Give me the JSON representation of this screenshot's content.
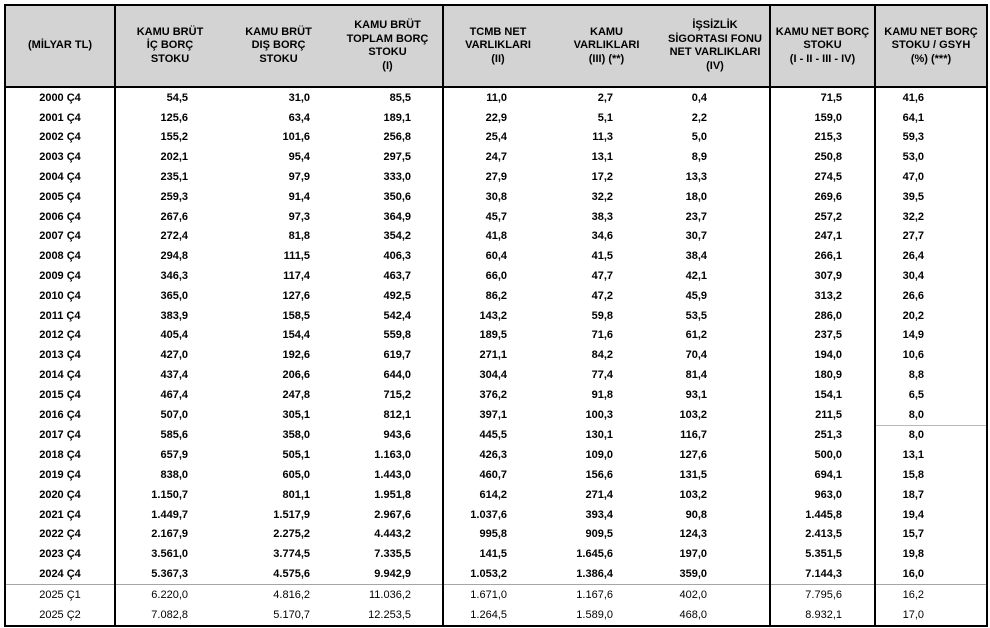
{
  "chart_data": {
    "type": "table",
    "unit_note": "(MİLYAR TL)",
    "columns": [
      "(MİLYAR TL)",
      "KAMU BRÜT\nİÇ BORÇ\nSTOKU",
      "KAMU BRÜT\nDIŞ BORÇ\nSTOKU",
      "KAMU BRÜT\nTOPLAM BORÇ\nSTOKU\n(I)",
      "TCMB NET\nVARLIKLARI\n(II)",
      "KAMU\nVARLIKLARI\n(III) (**)",
      "İŞSİZLİK\nSİGORTASI FONU\nNET VARLIKLARI\n(IV)",
      "KAMU NET BORÇ\nSTOKU\n(I - II - III - IV)",
      "KAMU NET BORÇ\nSTOKU / GSYH\n(%) (***)"
    ],
    "header_bg_color": "#d3d3d3",
    "rows": [
      {
        "period": "2000 Ç4",
        "bold": true,
        "values": [
          "54,5",
          "31,0",
          "85,5",
          "11,0",
          "2,7",
          "0,4",
          "71,5",
          "41,6"
        ]
      },
      {
        "period": "2001 Ç4",
        "bold": true,
        "values": [
          "125,6",
          "63,4",
          "189,1",
          "22,9",
          "5,1",
          "2,2",
          "159,0",
          "64,1"
        ]
      },
      {
        "period": "2002 Ç4",
        "bold": true,
        "values": [
          "155,2",
          "101,6",
          "256,8",
          "25,4",
          "11,3",
          "5,0",
          "215,3",
          "59,3"
        ]
      },
      {
        "period": "2003 Ç4",
        "bold": true,
        "values": [
          "202,1",
          "95,4",
          "297,5",
          "24,7",
          "13,1",
          "8,9",
          "250,8",
          "53,0"
        ]
      },
      {
        "period": "2004 Ç4",
        "bold": true,
        "values": [
          "235,1",
          "97,9",
          "333,0",
          "27,9",
          "17,2",
          "13,3",
          "274,5",
          "47,0"
        ]
      },
      {
        "period": "2005 Ç4",
        "bold": true,
        "values": [
          "259,3",
          "91,4",
          "350,6",
          "30,8",
          "32,2",
          "18,0",
          "269,6",
          "39,5"
        ]
      },
      {
        "period": "2006 Ç4",
        "bold": true,
        "values": [
          "267,6",
          "97,3",
          "364,9",
          "45,7",
          "38,3",
          "23,7",
          "257,2",
          "32,2"
        ]
      },
      {
        "period": "2007 Ç4",
        "bold": true,
        "values": [
          "272,4",
          "81,8",
          "354,2",
          "41,8",
          "34,6",
          "30,7",
          "247,1",
          "27,7"
        ]
      },
      {
        "period": "2008 Ç4",
        "bold": true,
        "values": [
          "294,8",
          "111,5",
          "406,3",
          "60,4",
          "41,5",
          "38,4",
          "266,1",
          "26,4"
        ]
      },
      {
        "period": "2009 Ç4",
        "bold": true,
        "values": [
          "346,3",
          "117,4",
          "463,7",
          "66,0",
          "47,7",
          "42,1",
          "307,9",
          "30,4"
        ]
      },
      {
        "period": "2010 Ç4",
        "bold": true,
        "values": [
          "365,0",
          "127,6",
          "492,5",
          "86,2",
          "47,2",
          "45,9",
          "313,2",
          "26,6"
        ]
      },
      {
        "period": "2011 Ç4",
        "bold": true,
        "values": [
          "383,9",
          "158,5",
          "542,4",
          "143,2",
          "59,8",
          "53,5",
          "286,0",
          "20,2"
        ]
      },
      {
        "period": "2012 Ç4",
        "bold": true,
        "values": [
          "405,4",
          "154,4",
          "559,8",
          "189,5",
          "71,6",
          "61,2",
          "237,5",
          "14,9"
        ]
      },
      {
        "period": "2013 Ç4",
        "bold": true,
        "values": [
          "427,0",
          "192,6",
          "619,7",
          "271,1",
          "84,2",
          "70,4",
          "194,0",
          "10,6"
        ]
      },
      {
        "period": "2014 Ç4",
        "bold": true,
        "values": [
          "437,4",
          "206,6",
          "644,0",
          "304,4",
          "77,4",
          "81,4",
          "180,9",
          "8,8"
        ]
      },
      {
        "period": "2015 Ç4",
        "bold": true,
        "values": [
          "467,4",
          "247,8",
          "715,2",
          "376,2",
          "91,8",
          "93,1",
          "154,1",
          "6,5"
        ]
      },
      {
        "period": "2016 Ç4",
        "bold": true,
        "pct_divider_below": true,
        "values": [
          "507,0",
          "305,1",
          "812,1",
          "397,1",
          "100,3",
          "103,2",
          "211,5",
          "8,0"
        ]
      },
      {
        "period": "2017 Ç4",
        "bold": true,
        "values": [
          "585,6",
          "358,0",
          "943,6",
          "445,5",
          "130,1",
          "116,7",
          "251,3",
          "8,0"
        ]
      },
      {
        "period": "2018 Ç4",
        "bold": true,
        "values": [
          "657,9",
          "505,1",
          "1.163,0",
          "426,3",
          "109,0",
          "127,6",
          "500,0",
          "13,1"
        ]
      },
      {
        "period": "2019 Ç4",
        "bold": true,
        "values": [
          "838,0",
          "605,0",
          "1.443,0",
          "460,7",
          "156,6",
          "131,5",
          "694,1",
          "15,8"
        ]
      },
      {
        "period": "2020 Ç4",
        "bold": true,
        "values": [
          "1.150,7",
          "801,1",
          "1.951,8",
          "614,2",
          "271,4",
          "103,2",
          "963,0",
          "18,7"
        ]
      },
      {
        "period": "2021 Ç4",
        "bold": true,
        "values": [
          "1.449,7",
          "1.517,9",
          "2.967,6",
          "1.037,6",
          "393,4",
          "90,8",
          "1.445,8",
          "19,4"
        ]
      },
      {
        "period": "2022 Ç4",
        "bold": true,
        "values": [
          "2.167,9",
          "2.275,2",
          "4.443,2",
          "995,8",
          "909,5",
          "124,3",
          "2.413,5",
          "15,7"
        ]
      },
      {
        "period": "2023 Ç4",
        "bold": true,
        "values": [
          "3.561,0",
          "3.774,5",
          "7.335,5",
          "141,5",
          "1.645,6",
          "197,0",
          "5.351,5",
          "19,8"
        ]
      },
      {
        "period": "2024 Ç4",
        "bold": true,
        "values": [
          "5.367,3",
          "4.575,6",
          "9.942,9",
          "1.053,2",
          "1.386,4",
          "359,0",
          "7.144,3",
          "16,0"
        ]
      },
      {
        "period": "2025 Ç1",
        "bold": false,
        "divider_above": true,
        "values": [
          "6.220,0",
          "4.816,2",
          "11.036,2",
          "1.671,0",
          "1.167,6",
          "402,0",
          "7.795,6",
          "16,2"
        ]
      },
      {
        "period": "2025 Ç2",
        "bold": false,
        "values": [
          "7.082,8",
          "5.170,7",
          "12.253,5",
          "1.264,5",
          "1.589,0",
          "468,0",
          "8.932,1",
          "17,0"
        ]
      }
    ]
  }
}
